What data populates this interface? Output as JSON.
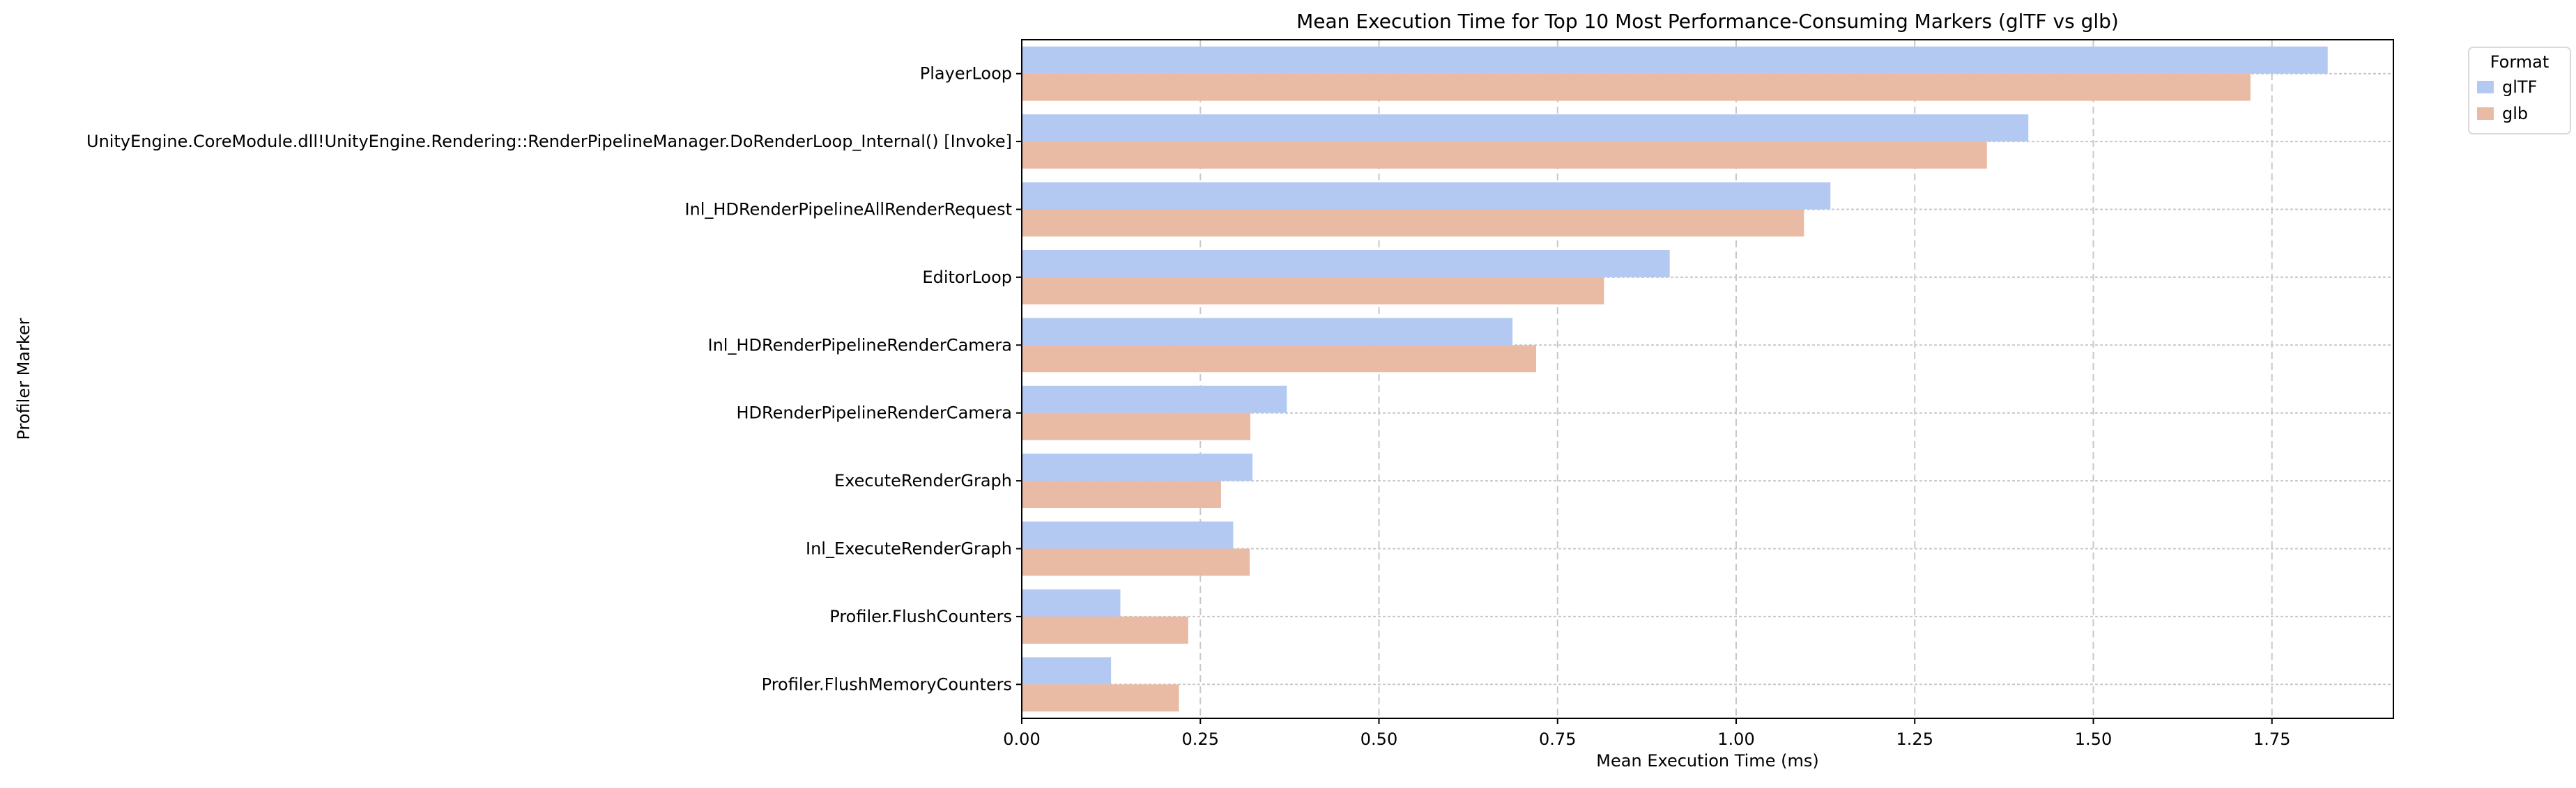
{
  "chart_data": {
    "type": "bar",
    "orientation": "horizontal",
    "title": "Mean Execution Time for Top 10 Most Performance-Consuming Markers (glTF vs glb)",
    "xlabel": "Mean Execution Time (ms)",
    "ylabel": "Profiler Marker",
    "xlim": [
      0,
      1.92
    ],
    "xticks": [
      "0.00",
      "0.25",
      "0.50",
      "0.75",
      "1.00",
      "1.25",
      "1.50",
      "1.75"
    ],
    "grid": true,
    "legend_title": "Format",
    "legend_position": "outside-top-right",
    "categories": [
      "PlayerLoop",
      "UnityEngine.CoreModule.dll!UnityEngine.Rendering::RenderPipelineManager.DoRenderLoop_Internal() [Invoke]",
      "Inl_HDRenderPipelineAllRenderRequest",
      "EditorLoop",
      "Inl_HDRenderPipelineRenderCamera",
      "HDRenderPipelineRenderCamera",
      "ExecuteRenderGraph",
      "Inl_ExecuteRenderGraph",
      "Profiler.FlushCounters",
      "Profiler.FlushMemoryCounters"
    ],
    "series": [
      {
        "name": "glTF",
        "color": "#b3c9f2",
        "values": [
          1.828,
          1.409,
          1.132,
          0.907,
          0.687,
          0.371,
          0.323,
          0.296,
          0.138,
          0.125
        ]
      },
      {
        "name": "glb",
        "color": "#eabba4",
        "values": [
          1.72,
          1.351,
          1.095,
          0.815,
          0.72,
          0.32,
          0.279,
          0.319,
          0.233,
          0.22
        ]
      }
    ]
  }
}
